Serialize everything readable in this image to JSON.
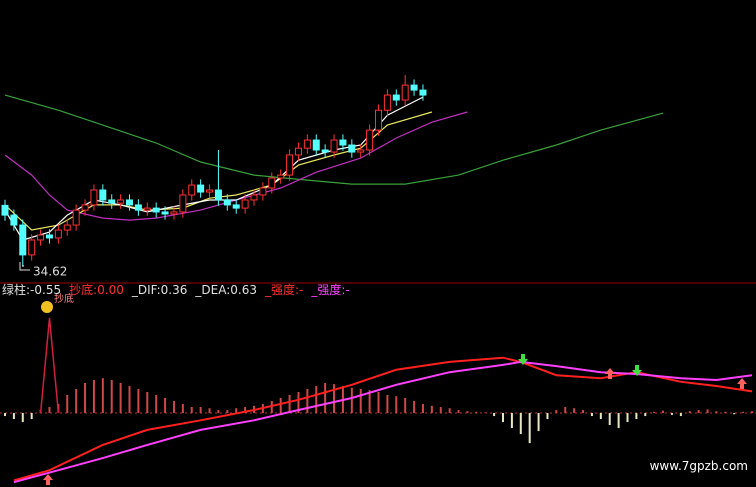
{
  "watermark": "www.7gpzb.com",
  "chart_data": [
    {
      "type": "candlestick",
      "xlim": [
        0,
        84
      ],
      "ylim": [
        34,
        45.5
      ],
      "up_color": "#ff3232",
      "down_color": "#54ffff",
      "annotation": "34.62",
      "open": [
        37.3,
        36.87,
        36.43,
        35.11,
        35.77,
        35.99,
        35.86,
        36.21,
        36.43,
        37.09,
        37.32,
        37.98,
        37.54,
        37.4,
        37.54,
        37.32,
        37.09,
        37.18,
        37.01,
        36.92,
        37.01,
        37.76,
        38.2,
        37.89,
        37.98,
        37.54,
        37.32,
        37.18,
        37.54,
        37.76,
        38.07,
        38.51,
        38.64,
        39.53,
        39.83,
        40.19,
        39.75,
        39.66,
        40.19,
        39.97,
        39.66,
        39.75,
        40.63,
        41.51,
        42.18,
        41.96,
        42.62,
        42.4
      ],
      "close": [
        36.87,
        36.43,
        35.11,
        35.77,
        35.99,
        35.86,
        36.21,
        36.43,
        37.09,
        37.32,
        37.98,
        37.54,
        37.4,
        37.54,
        37.32,
        37.09,
        37.18,
        37.01,
        36.92,
        37.01,
        37.76,
        38.2,
        37.89,
        37.98,
        37.54,
        37.32,
        37.18,
        37.54,
        37.76,
        38.07,
        38.51,
        38.64,
        39.53,
        39.83,
        40.19,
        39.75,
        39.66,
        40.19,
        39.97,
        39.66,
        39.75,
        40.63,
        41.51,
        42.18,
        41.96,
        42.62,
        42.4,
        42.18
      ],
      "high": [
        37.55,
        37.12,
        36.68,
        36.02,
        36.24,
        36.24,
        36.46,
        36.68,
        37.34,
        37.57,
        38.23,
        38.23,
        37.79,
        37.79,
        37.79,
        37.57,
        37.43,
        37.43,
        37.26,
        37.26,
        38.01,
        38.45,
        38.45,
        38.23,
        39.75,
        37.79,
        37.57,
        37.79,
        38.01,
        38.32,
        38.76,
        38.89,
        39.78,
        40.08,
        40.44,
        40.44,
        40.0,
        40.44,
        40.44,
        40.22,
        40.0,
        40.88,
        41.76,
        42.43,
        42.43,
        43.07,
        42.87,
        42.65
      ],
      "low": [
        36.62,
        36.18,
        34.62,
        34.86,
        35.52,
        35.61,
        35.61,
        35.96,
        36.18,
        36.84,
        37.07,
        37.29,
        37.15,
        37.15,
        37.07,
        36.84,
        36.84,
        36.76,
        36.67,
        36.67,
        36.76,
        37.51,
        37.64,
        37.64,
        37.29,
        37.07,
        36.93,
        36.93,
        37.29,
        37.51,
        37.82,
        38.26,
        38.39,
        39.28,
        39.58,
        39.5,
        39.41,
        39.41,
        39.72,
        39.41,
        39.41,
        39.5,
        40.38,
        41.26,
        41.71,
        41.71,
        42.15,
        41.93
      ],
      "series": [
        {
          "color": "#3aa03a",
          "x": [
            0,
            6,
            11,
            17,
            22,
            28,
            34,
            39,
            45,
            51,
            56,
            62,
            67,
            74
          ],
          "values": [
            42.18,
            41.51,
            40.85,
            40.06,
            39.22,
            38.64,
            38.42,
            38.24,
            38.24,
            38.64,
            39.3,
            39.97,
            40.63,
            41.38
          ]
        },
        {
          "color": "#c030c0",
          "x": [
            0,
            3,
            5,
            7,
            11,
            14,
            17,
            22,
            26,
            31,
            35,
            40,
            44,
            48,
            52
          ],
          "values": [
            39.53,
            38.64,
            37.76,
            37.09,
            36.74,
            36.65,
            36.74,
            37.09,
            37.54,
            38.07,
            38.77,
            39.39,
            40.28,
            40.98,
            41.43
          ]
        },
        {
          "color": "#e8e860",
          "x": [
            0,
            3,
            6,
            10,
            13,
            16,
            20,
            23,
            26,
            30,
            33,
            37,
            40,
            43,
            48
          ],
          "values": [
            37.32,
            36.21,
            36.43,
            37.32,
            37.32,
            37.09,
            37.18,
            37.62,
            37.76,
            38.2,
            39.08,
            39.53,
            39.83,
            40.85,
            41.43
          ]
        },
        {
          "color": "#ffffff",
          "x": [
            0,
            2,
            5,
            7,
            10,
            13,
            16,
            20,
            23,
            26,
            30,
            33,
            37,
            40,
            43,
            47
          ],
          "values": [
            37.09,
            35.77,
            36.12,
            36.87,
            37.54,
            37.32,
            37.01,
            37.32,
            37.54,
            37.54,
            38.2,
            39.3,
            39.75,
            39.97,
            41.29,
            42.09
          ]
        }
      ]
    },
    {
      "type": "macd",
      "xlim": [
        0,
        84
      ],
      "ylim": [
        -1.23,
        1.88
      ],
      "legend": [
        {
          "name": "绿柱:",
          "value": -0.55,
          "color": "#e0e0e0"
        },
        {
          "name": "抄底:",
          "value": 0,
          "value_label": "0.00",
          "color": "#ff3030"
        },
        {
          "name": "_DIF:",
          "value": 0.36,
          "color": "#e0e0e0"
        },
        {
          "name": "_DEA:",
          "value": 0.63,
          "color": "#e0e0e0"
        },
        {
          "name": "_强度:",
          "value_label": "-",
          "color": "#ff3030"
        },
        {
          "name": "_强度:",
          "value_label": "-",
          "color": "#ff40ff"
        }
      ],
      "bar_pos_color": "#d04848",
      "bar_neg_color": "#e8e8c0",
      "bars": [
        -0.05,
        -0.1,
        -0.15,
        -0.1,
        0.05,
        0.1,
        0.15,
        0.3,
        0.4,
        0.5,
        0.55,
        0.58,
        0.55,
        0.5,
        0.45,
        0.4,
        0.35,
        0.3,
        0.25,
        0.2,
        0.15,
        0.1,
        0.1,
        0.08,
        0.05,
        0.05,
        0.08,
        0.1,
        0.12,
        0.15,
        0.2,
        0.25,
        0.3,
        0.35,
        0.4,
        0.45,
        0.5,
        0.48,
        0.45,
        0.42,
        0.4,
        0.38,
        0.35,
        0.3,
        0.28,
        0.25,
        0.2,
        0.15,
        0.12,
        0.1,
        0.08,
        0.05,
        0.03,
        0.02,
        0.01,
        -0.05,
        -0.15,
        -0.25,
        -0.35,
        -0.5,
        -0.3,
        -0.1,
        0.05,
        0.1,
        0.08,
        0.05,
        -0.05,
        -0.1,
        -0.2,
        -0.25,
        -0.15,
        -0.1,
        -0.05,
        0.02,
        0.04,
        -0.03,
        -0.05,
        0.03,
        0.05,
        0.06,
        0.03,
        0.02,
        -0.02,
        0.02,
        0.03
      ],
      "signal": {
        "color": "#d02040",
        "label": "抄底",
        "x": [
          4,
          5,
          6
        ],
        "values": [
          0,
          1.58,
          0
        ]
      },
      "series": [
        {
          "color": "#ff2020",
          "x": [
            1,
            5,
            11,
            16,
            22,
            28,
            33,
            39,
            44,
            50,
            56,
            58,
            62,
            67,
            71,
            76,
            80,
            84
          ],
          "values": [
            -1.12,
            -0.95,
            -0.53,
            -0.28,
            -0.12,
            0.05,
            0.22,
            0.47,
            0.72,
            0.85,
            0.92,
            0.85,
            0.63,
            0.58,
            0.68,
            0.52,
            0.45,
            0.36
          ]
        },
        {
          "color": "#ff40ff",
          "x": [
            1,
            6,
            11,
            16,
            22,
            28,
            33,
            39,
            44,
            50,
            56,
            58,
            62,
            67,
            71,
            76,
            80,
            84
          ],
          "values": [
            -1.15,
            -0.95,
            -0.75,
            -0.53,
            -0.28,
            -0.12,
            0.05,
            0.25,
            0.47,
            0.68,
            0.8,
            0.85,
            0.78,
            0.68,
            0.65,
            0.58,
            0.55,
            0.63
          ]
        }
      ]
    }
  ]
}
